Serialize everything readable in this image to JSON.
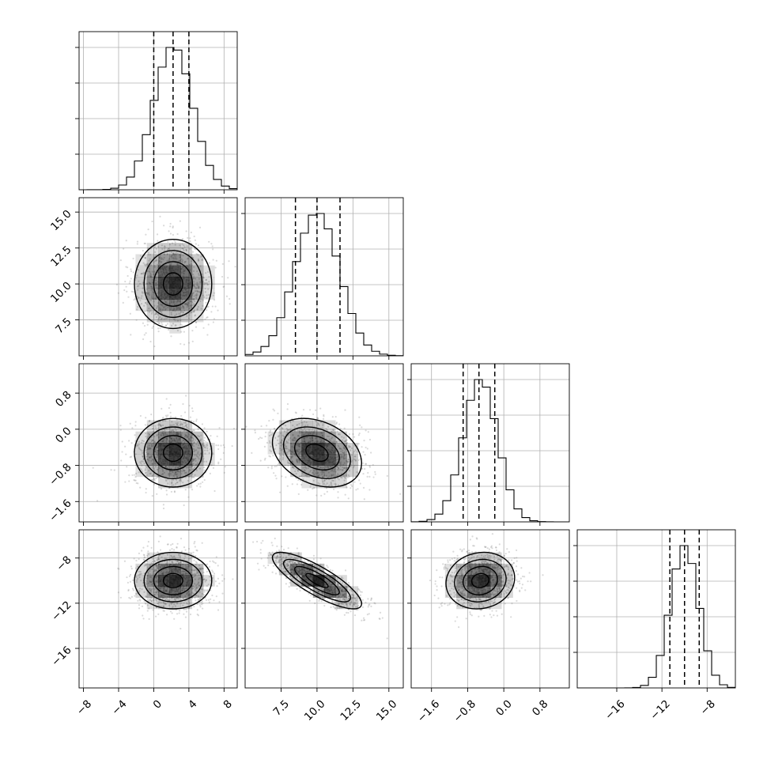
{
  "chart_data": {
    "type": "corner",
    "parameters": [
      {
        "range": [
          -8.5,
          9.5
        ],
        "ticks": [
          -8,
          -4,
          0,
          4,
          8
        ],
        "tick_labels": [
          "−8",
          "−4",
          "0",
          "4",
          "8"
        ],
        "mean": 2.2,
        "sd": 2.2,
        "quantiles": [
          0.0,
          2.2,
          4.0
        ]
      },
      {
        "range": [
          5.0,
          16.0
        ],
        "ticks": [
          7.5,
          10.0,
          12.5,
          15.0
        ],
        "tick_labels": [
          "7.5",
          "10.0",
          "12.5",
          "15.0"
        ],
        "mean": 10.0,
        "sd": 1.55,
        "quantiles": [
          8.5,
          10.0,
          11.6
        ]
      },
      {
        "range": [
          -2.05,
          1.45
        ],
        "ticks": [
          -1.6,
          -0.8,
          0.0,
          0.8
        ],
        "tick_labels": [
          "−1.6",
          "−0.8",
          "0.0",
          "0.8"
        ],
        "mean": -0.52,
        "sd": 0.38,
        "quantiles": [
          -0.9,
          -0.55,
          -0.2
        ]
      },
      {
        "range": [
          -19.5,
          -5.5
        ],
        "ticks": [
          -16,
          -12,
          -8
        ],
        "tick_labels": [
          "−16",
          "−12",
          "−8"
        ],
        "mean": -10.0,
        "sd": 1.25,
        "quantiles": [
          -11.3,
          -10.0,
          -8.7
        ]
      }
    ],
    "correlations": [
      {
        "pair": [
          0,
          1
        ],
        "rho": 0.0
      },
      {
        "pair": [
          0,
          2
        ],
        "rho": 0.0
      },
      {
        "pair": [
          0,
          3
        ],
        "rho": 0.0
      },
      {
        "pair": [
          1,
          2
        ],
        "rho": -0.3
      },
      {
        "pair": [
          1,
          3
        ],
        "rho": -0.82
      },
      {
        "pair": [
          2,
          3
        ],
        "rho": 0.1
      }
    ],
    "grid": true,
    "hist_bins": 20,
    "contour_levels": [
      "0.5 sigma",
      "1 sigma",
      "1.5 sigma",
      "2 sigma"
    ]
  }
}
